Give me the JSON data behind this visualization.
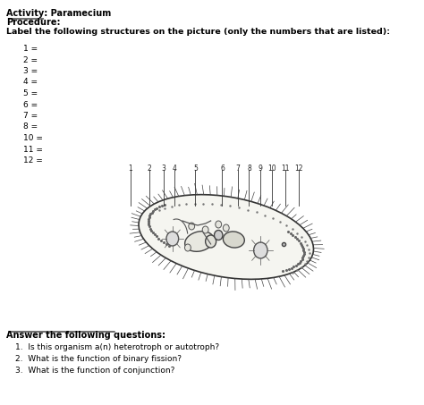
{
  "title_line1": "Activity: Paramecium",
  "title_line2": "Procedure:",
  "title_line3": "Label the following structures on the picture (only the numbers that are listed):",
  "numbered_labels": [
    "1 =",
    "2 =",
    "3 =",
    "4 =",
    "5 =",
    "6 =",
    "7 =",
    "8 =",
    "10 =",
    "11 =",
    "12 ="
  ],
  "questions_header": "Answer the following questions:",
  "questions": [
    "1.  Is this organism a(n) heterotroph or autotroph?",
    "2.  What is the function of binary fission?",
    "3.  What is the function of conjunction?"
  ],
  "bg_color": "#ffffff",
  "text_color": "#000000"
}
